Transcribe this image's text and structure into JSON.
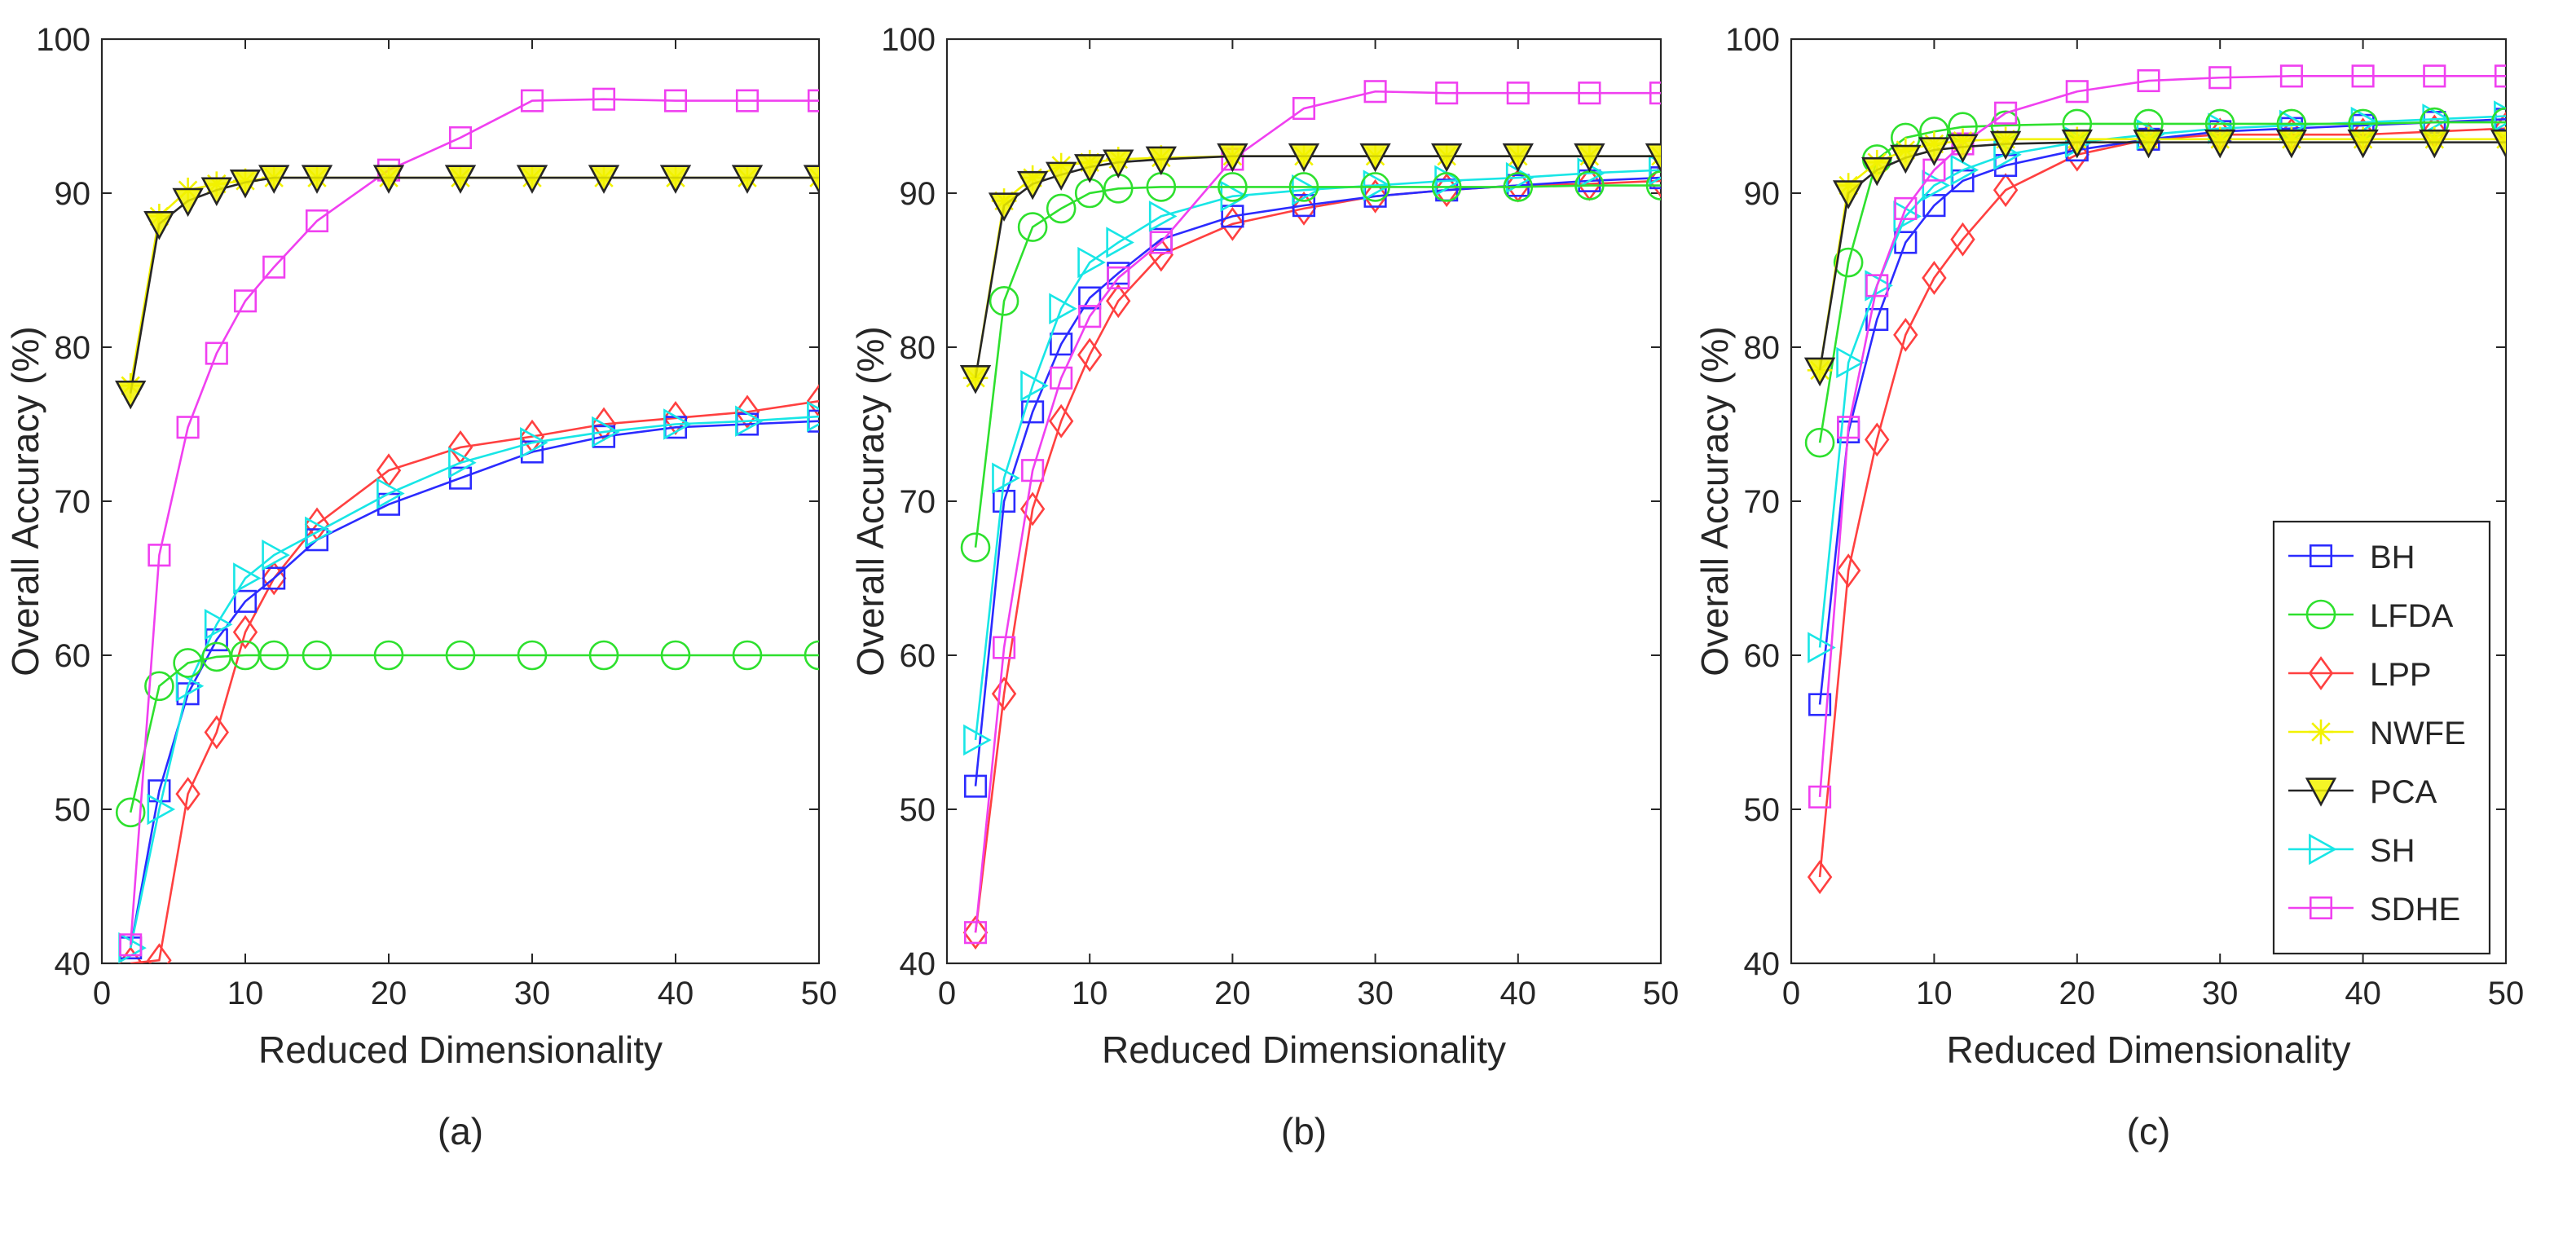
{
  "figure": {
    "panel_captions": [
      "(a)",
      "(b)",
      "(c)"
    ],
    "legend": [
      "BH",
      "LFDA",
      "LPP",
      "NWFE",
      "PCA",
      "SH",
      "SDHE"
    ]
  },
  "chart_data": [
    {
      "type": "line",
      "title": "",
      "caption": "(a)",
      "xlabel": "Reduced Dimensionality",
      "ylabel": "Overall Accuracy (%)",
      "xlim": [
        0,
        50
      ],
      "ylim": [
        40,
        100
      ],
      "xticks": [
        0,
        10,
        20,
        30,
        40,
        50
      ],
      "yticks": [
        40,
        50,
        60,
        70,
        80,
        90,
        100
      ],
      "x": [
        2,
        4,
        6,
        8,
        10,
        12,
        15,
        20,
        25,
        30,
        35,
        40,
        45,
        50
      ],
      "series": [
        {
          "name": "BH",
          "color": "#2b2bff",
          "marker": "square",
          "values": [
            41.0,
            51.2,
            57.5,
            61.0,
            63.5,
            65.0,
            67.5,
            69.8,
            71.5,
            73.2,
            74.2,
            74.8,
            75.0,
            75.2
          ]
        },
        {
          "name": "LFDA",
          "color": "#2ee02e",
          "marker": "circle",
          "values": [
            49.8,
            58.0,
            59.5,
            59.9,
            60.0,
            60.0,
            60.0,
            60.0,
            60.0,
            60.0,
            60.0,
            60.0,
            60.0,
            60.0
          ]
        },
        {
          "name": "LPP",
          "color": "#ff4040",
          "marker": "diamond",
          "values": [
            40.0,
            40.2,
            51.0,
            55.0,
            61.5,
            65.0,
            68.5,
            72.0,
            73.5,
            74.2,
            75.0,
            75.4,
            75.8,
            76.5
          ]
        },
        {
          "name": "NWFE",
          "color": "#f2f200",
          "marker": "star",
          "values": [
            77.5,
            88.5,
            90.2,
            90.6,
            90.8,
            91.0,
            91.0,
            91.0,
            91.0,
            91.0,
            91.0,
            91.0,
            91.0,
            91.0
          ]
        },
        {
          "name": "PCA",
          "color": "#262626",
          "marker": "triangle-down",
          "values": [
            77.0,
            88.0,
            89.5,
            90.2,
            90.7,
            91.0,
            91.0,
            91.0,
            91.0,
            91.0,
            91.0,
            91.0,
            91.0,
            91.0
          ]
        },
        {
          "name": "SH",
          "color": "#18e6e6",
          "marker": "triangle-right",
          "values": [
            41.0,
            50.0,
            58.0,
            62.0,
            65.0,
            66.5,
            68.0,
            70.5,
            72.5,
            73.8,
            74.5,
            75.0,
            75.2,
            75.5
          ]
        },
        {
          "name": "SDHE",
          "color": "#f040f0",
          "marker": "square",
          "values": [
            41.2,
            66.5,
            74.8,
            79.6,
            83.0,
            85.2,
            88.2,
            91.5,
            93.6,
            96.0,
            96.1,
            96.0,
            96.0,
            96.0
          ]
        }
      ]
    },
    {
      "type": "line",
      "title": "",
      "caption": "(b)",
      "xlabel": "Reduced Dimensionality",
      "ylabel": "Overall Accuracy (%)",
      "xlim": [
        0,
        50
      ],
      "ylim": [
        40,
        100
      ],
      "xticks": [
        0,
        10,
        20,
        30,
        40,
        50
      ],
      "yticks": [
        40,
        50,
        60,
        70,
        80,
        90,
        100
      ],
      "x": [
        2,
        4,
        6,
        8,
        10,
        12,
        15,
        20,
        25,
        30,
        35,
        40,
        45,
        50
      ],
      "series": [
        {
          "name": "BH",
          "color": "#2b2bff",
          "marker": "square",
          "values": [
            51.5,
            70.0,
            75.8,
            80.2,
            83.2,
            84.8,
            87.0,
            88.5,
            89.2,
            89.8,
            90.2,
            90.5,
            90.8,
            91.0
          ]
        },
        {
          "name": "LFDA",
          "color": "#2ee02e",
          "marker": "circle",
          "values": [
            67.0,
            83.0,
            87.8,
            89.0,
            90.0,
            90.3,
            90.4,
            90.4,
            90.4,
            90.4,
            90.4,
            90.4,
            90.5,
            90.5
          ]
        },
        {
          "name": "LPP",
          "color": "#ff4040",
          "marker": "diamond",
          "values": [
            42.0,
            57.5,
            69.5,
            75.2,
            79.5,
            83.0,
            86.0,
            88.0,
            89.0,
            89.8,
            90.2,
            90.5,
            90.6,
            90.8
          ]
        },
        {
          "name": "NWFE",
          "color": "#f2f200",
          "marker": "star",
          "values": [
            78.0,
            89.5,
            91.0,
            91.8,
            92.0,
            92.2,
            92.3,
            92.4,
            92.4,
            92.4,
            92.4,
            92.4,
            92.4,
            92.4
          ]
        },
        {
          "name": "PCA",
          "color": "#262626",
          "marker": "triangle-down",
          "values": [
            78.0,
            89.2,
            90.6,
            91.2,
            91.7,
            92.0,
            92.2,
            92.4,
            92.4,
            92.4,
            92.4,
            92.4,
            92.4,
            92.4
          ]
        },
        {
          "name": "SH",
          "color": "#18e6e6",
          "marker": "triangle-right",
          "values": [
            54.5,
            71.5,
            77.5,
            82.5,
            85.5,
            86.8,
            88.5,
            89.8,
            90.2,
            90.5,
            90.8,
            91.0,
            91.3,
            91.5
          ]
        },
        {
          "name": "SDHE",
          "color": "#f040f0",
          "marker": "square",
          "values": [
            42.0,
            60.5,
            72.0,
            78.0,
            82.0,
            84.5,
            86.8,
            92.2,
            95.5,
            96.6,
            96.5,
            96.5,
            96.5,
            96.5
          ]
        }
      ]
    },
    {
      "type": "line",
      "title": "",
      "caption": "(c)",
      "xlabel": "Reduced Dimensionality",
      "ylabel": "Overall Accuracy (%)",
      "xlim": [
        0,
        50
      ],
      "ylim": [
        40,
        100
      ],
      "xticks": [
        0,
        10,
        20,
        30,
        40,
        50
      ],
      "yticks": [
        40,
        50,
        60,
        70,
        80,
        90,
        100
      ],
      "legend_position": "bottom-right",
      "x": [
        2,
        4,
        6,
        8,
        10,
        12,
        15,
        20,
        25,
        30,
        35,
        40,
        45,
        50
      ],
      "series": [
        {
          "name": "BH",
          "color": "#2b2bff",
          "marker": "square",
          "values": [
            56.8,
            74.5,
            81.8,
            86.8,
            89.2,
            90.8,
            91.8,
            92.8,
            93.5,
            94.0,
            94.2,
            94.4,
            94.6,
            94.8
          ]
        },
        {
          "name": "LFDA",
          "color": "#2ee02e",
          "marker": "circle",
          "values": [
            73.8,
            85.5,
            92.2,
            93.6,
            94.0,
            94.3,
            94.4,
            94.5,
            94.5,
            94.5,
            94.5,
            94.5,
            94.6,
            94.6
          ]
        },
        {
          "name": "LPP",
          "color": "#ff4040",
          "marker": "diamond",
          "values": [
            45.6,
            65.5,
            74.0,
            80.8,
            84.5,
            87.0,
            90.2,
            92.5,
            93.5,
            93.8,
            93.8,
            93.8,
            94.0,
            94.2
          ]
        },
        {
          "name": "NWFE",
          "color": "#f2f200",
          "marker": "star",
          "values": [
            78.5,
            90.5,
            92.0,
            92.8,
            93.2,
            93.4,
            93.5,
            93.5,
            93.5,
            93.5,
            93.5,
            93.5,
            93.5,
            93.5
          ]
        },
        {
          "name": "PCA",
          "color": "#262626",
          "marker": "triangle-down",
          "values": [
            78.5,
            90.0,
            91.5,
            92.3,
            92.8,
            93.0,
            93.2,
            93.3,
            93.3,
            93.3,
            93.3,
            93.3,
            93.3,
            93.3
          ]
        },
        {
          "name": "SH",
          "color": "#18e6e6",
          "marker": "triangle-right",
          "values": [
            60.5,
            79.0,
            84.0,
            88.5,
            90.5,
            91.5,
            92.5,
            93.3,
            93.8,
            94.2,
            94.4,
            94.6,
            94.8,
            95.0
          ]
        },
        {
          "name": "SDHE",
          "color": "#f040f0",
          "marker": "square",
          "values": [
            50.8,
            74.8,
            84.0,
            89.0,
            91.5,
            93.2,
            95.2,
            96.6,
            97.3,
            97.5,
            97.6,
            97.6,
            97.6,
            97.6
          ]
        }
      ]
    }
  ]
}
